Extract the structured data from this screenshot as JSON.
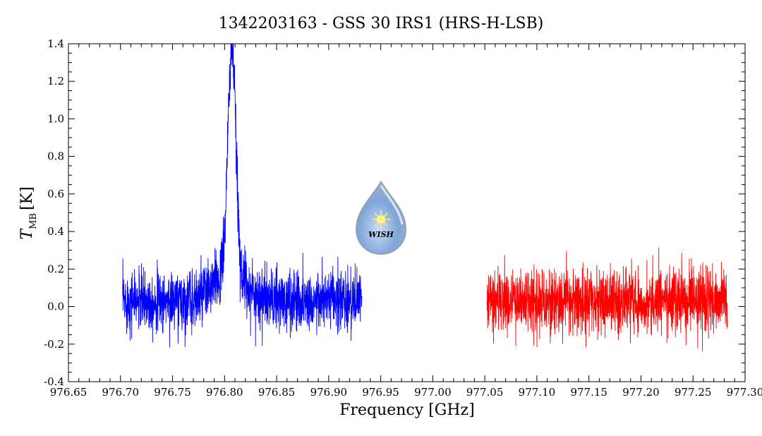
{
  "chart_data": {
    "type": "line",
    "title": "1342203163 - GSS 30 IRS1 (HRS-H-LSB)",
    "xlabel": "Frequency [GHz]",
    "ylabel_main": "T",
    "ylabel_sub": "MB",
    "ylabel_unit": "[K]",
    "xlim": [
      976.65,
      977.3
    ],
    "ylim": [
      -0.4,
      1.4
    ],
    "x_ticks": [
      "976.65",
      "976.70",
      "976.75",
      "976.80",
      "976.85",
      "976.90",
      "976.95",
      "977.00",
      "977.05",
      "977.10",
      "977.15",
      "977.20",
      "977.25",
      "977.30"
    ],
    "y_ticks": [
      "-0.4",
      "-0.2",
      "0.0",
      "0.2",
      "0.4",
      "0.6",
      "0.8",
      "1.0",
      "1.2",
      "1.4"
    ],
    "grid": false,
    "series": [
      {
        "color": "#0000ff",
        "x_range": [
          976.702,
          976.932
        ],
        "noise_rms": 0.08,
        "baseline": 0.03,
        "line": {
          "center": 976.807,
          "peak": 1.2,
          "fwhm": 0.009
        },
        "wing": {
          "center": 976.805,
          "peak": 0.15,
          "fwhm": 0.035
        }
      },
      {
        "color": "#ff0000",
        "x_range": [
          977.052,
          977.283
        ],
        "noise_rms": 0.085,
        "baseline": 0.03
      }
    ],
    "logo": {
      "text": "WISH"
    }
  }
}
